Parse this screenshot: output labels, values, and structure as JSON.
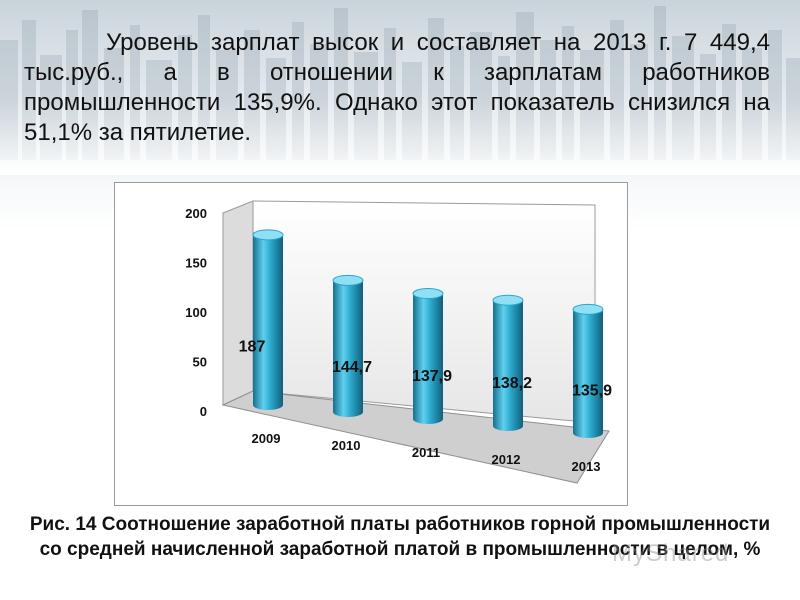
{
  "headline": "Уровень зарплат высок и составляет на 2013 г. 7 449,4 тыс.руб., а в отношении к зарплатам работников промышленности 135,9%. Однако этот показатель снизился на 51,1% за пятилетие.",
  "caption": "Рис. 14 Соотношение заработной платы работников горной промышленности со средней начисленной заработной платой в промышленности в целом, %",
  "watermark": "MyShared",
  "colors": {
    "bar": "#2aa6cc",
    "bar_dark": "#156f8e",
    "bar_light": "#8fe0f5"
  },
  "chart_data": {
    "type": "bar",
    "categories": [
      "2009",
      "2010",
      "2011",
      "2012",
      "2013"
    ],
    "values": [
      187,
      144.7,
      137.9,
      138.2,
      135.9
    ],
    "value_labels": [
      "187",
      "144,7",
      "137,9",
      "138,2",
      "135,9"
    ],
    "y_ticks": [
      "0",
      "50",
      "100",
      "150",
      "200"
    ],
    "ylim": [
      0,
      200
    ],
    "title": "",
    "xlabel": "",
    "ylabel": "",
    "grid": false,
    "legend": "none",
    "style": "3d-cylinder"
  }
}
